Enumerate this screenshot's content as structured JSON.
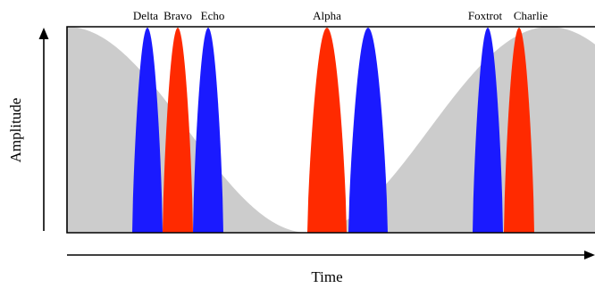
{
  "figure": {
    "x_axis_label": "Time",
    "y_axis_label": "Amplitude",
    "colors": {
      "envelope": "#cccccc",
      "frame": "#000000",
      "blue_pulse": "#1a1aff",
      "red_pulse": "#ff2a00"
    },
    "pulses": [
      {
        "label": "Delta",
        "color": "blue"
      },
      {
        "label": "Bravo",
        "color": "red"
      },
      {
        "label": "Echo",
        "color": "blue"
      },
      {
        "label": "Alpha",
        "color": "red"
      },
      {
        "label": "",
        "color": "blue"
      },
      {
        "label": "Foxtrot",
        "color": "blue"
      },
      {
        "label": "Charlie",
        "color": "red"
      }
    ]
  }
}
